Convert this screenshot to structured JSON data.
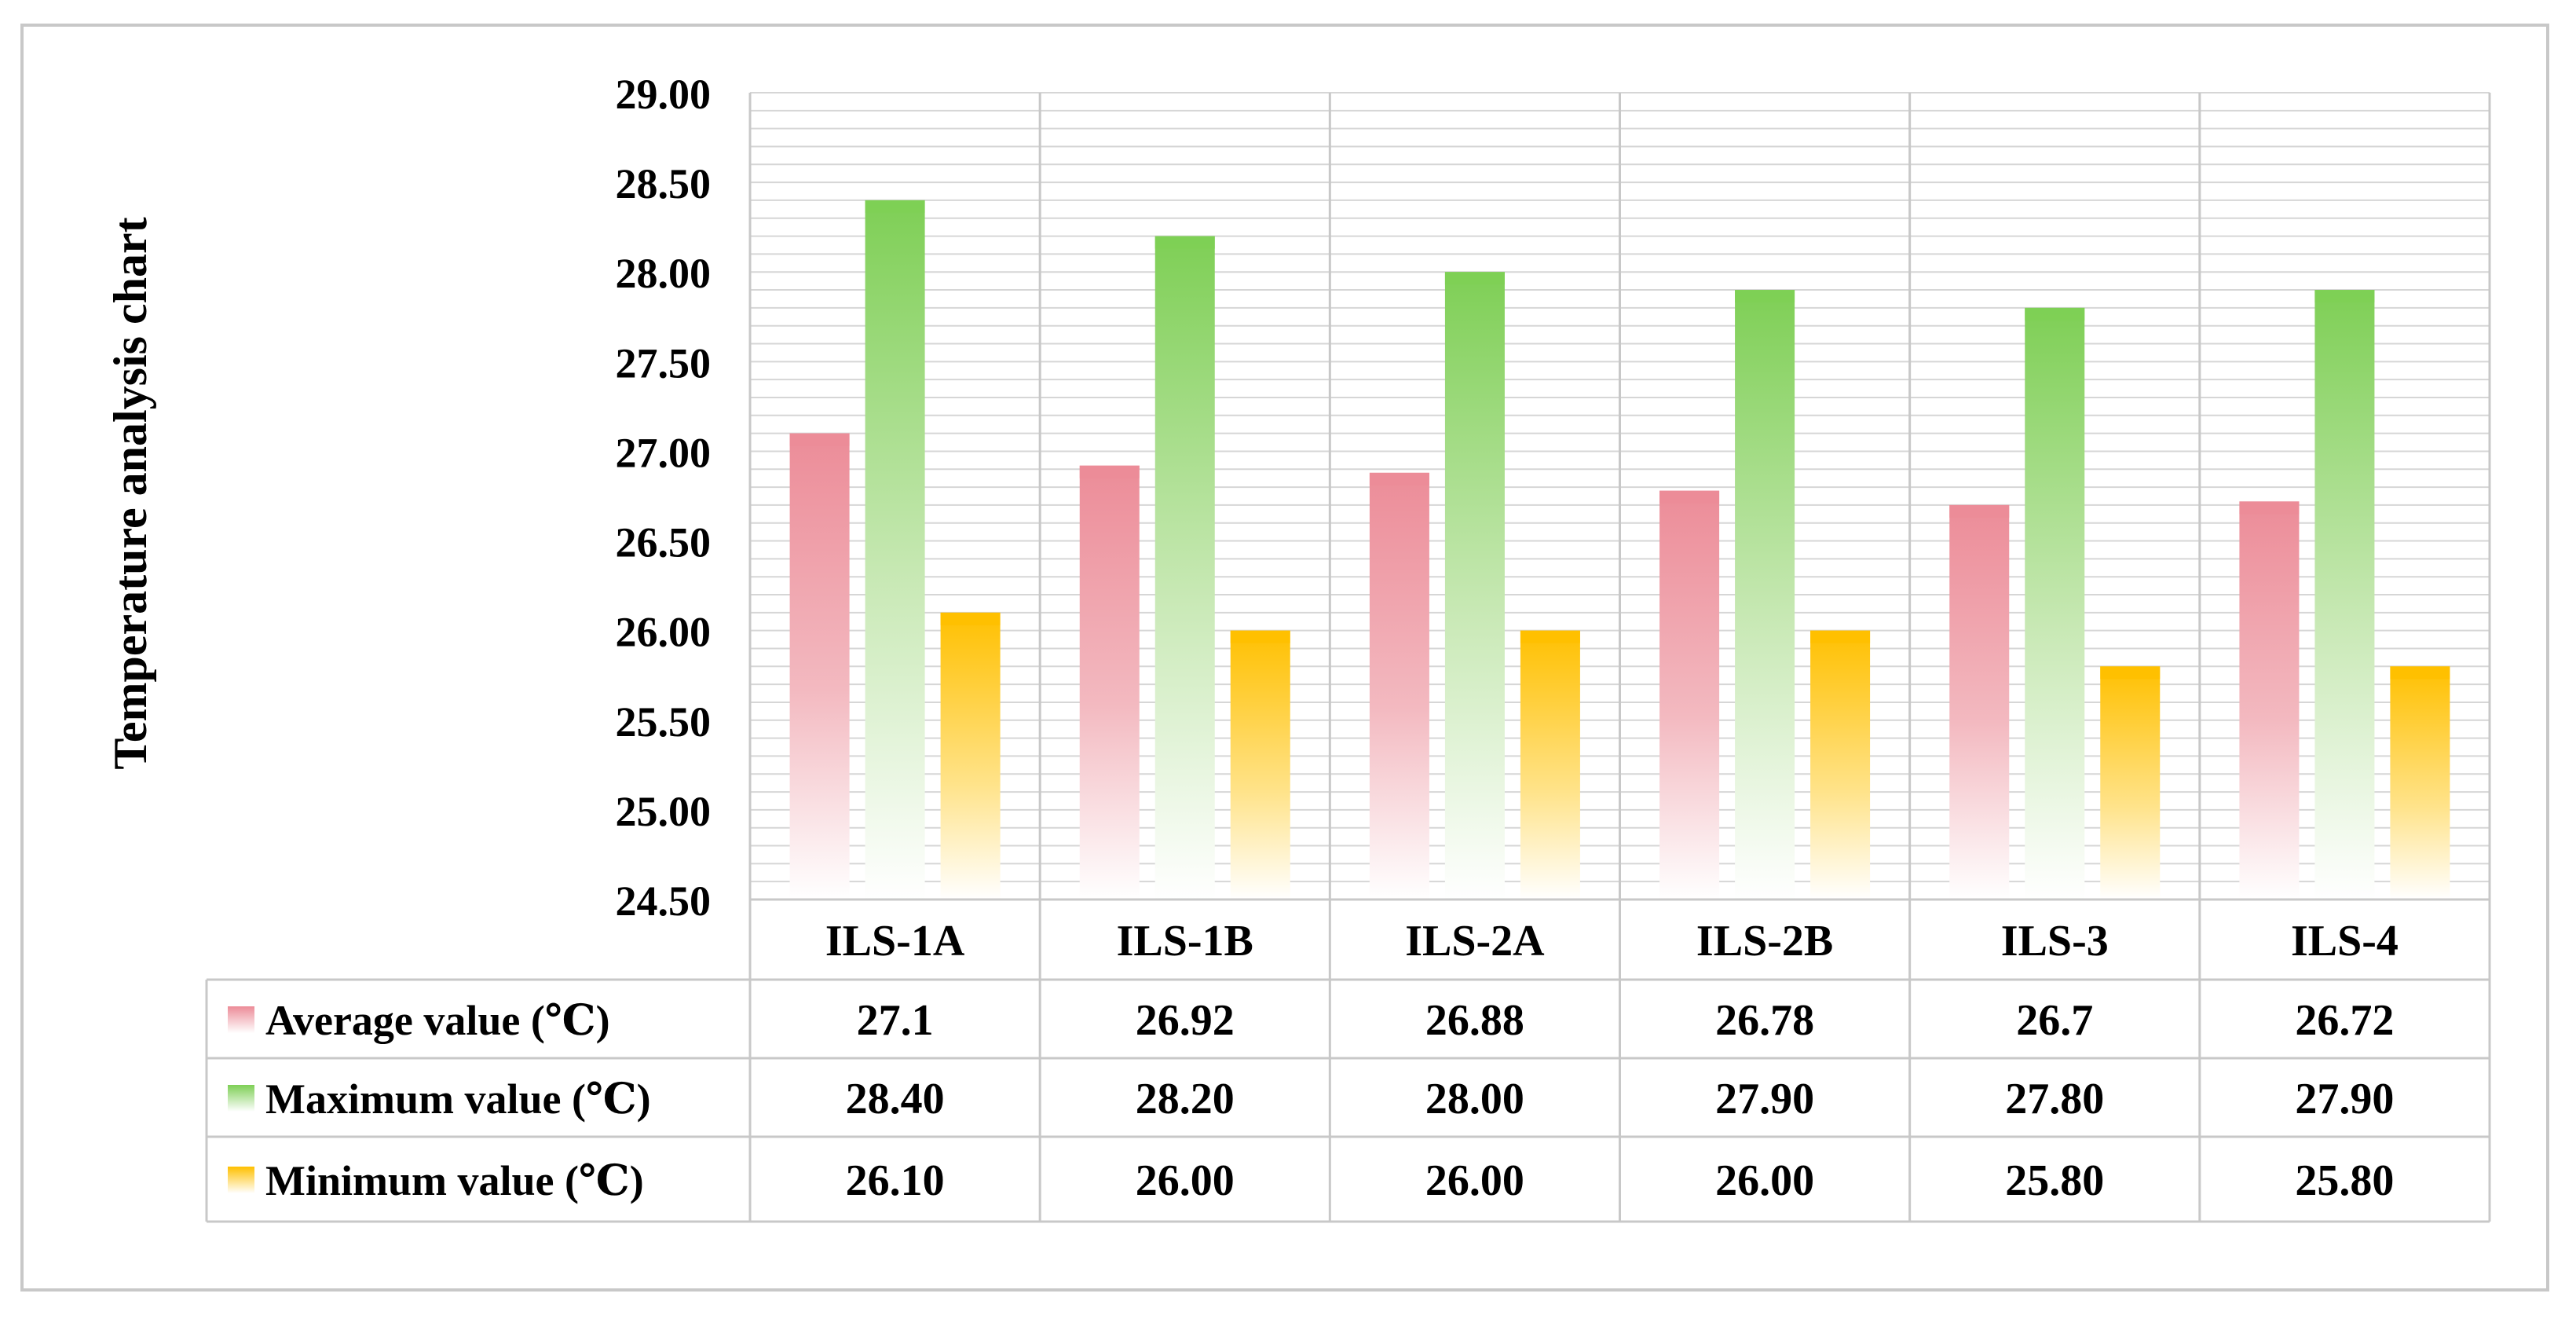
{
  "chart_data": {
    "type": "bar",
    "ylabel": "Temperature analysis chart",
    "ylim": [
      24.5,
      29.0
    ],
    "yticks": [
      "29.00",
      "28.50",
      "28.00",
      "27.50",
      "27.00",
      "26.50",
      "26.00",
      "25.50",
      "25.00",
      "24.50"
    ],
    "categories": [
      "ILS-1A",
      "ILS-1B",
      "ILS-2A",
      "ILS-2B",
      "ILS-3",
      "ILS-4"
    ],
    "series": [
      {
        "name": "Average value (℃)",
        "values": [
          27.1,
          26.92,
          26.88,
          26.78,
          26.7,
          26.72
        ],
        "labels": [
          "27.1",
          "26.92",
          "26.88",
          "26.78",
          "26.7",
          "26.72"
        ],
        "color": "#ec8c98"
      },
      {
        "name": "Maximum value (℃)",
        "values": [
          28.4,
          28.2,
          28.0,
          27.9,
          27.8,
          27.9
        ],
        "labels": [
          "28.40",
          "28.20",
          "28.00",
          "27.90",
          "27.80",
          "27.90"
        ],
        "color": "#7ecf55"
      },
      {
        "name": "Minimum value (℃)",
        "values": [
          26.1,
          26.0,
          26.0,
          26.0,
          25.8,
          25.8
        ],
        "labels": [
          "26.10",
          "26.00",
          "26.00",
          "26.00",
          "25.80",
          "25.80"
        ],
        "color": "#ffc000"
      }
    ],
    "data_table": true,
    "grid": true,
    "legend": "data-table"
  }
}
